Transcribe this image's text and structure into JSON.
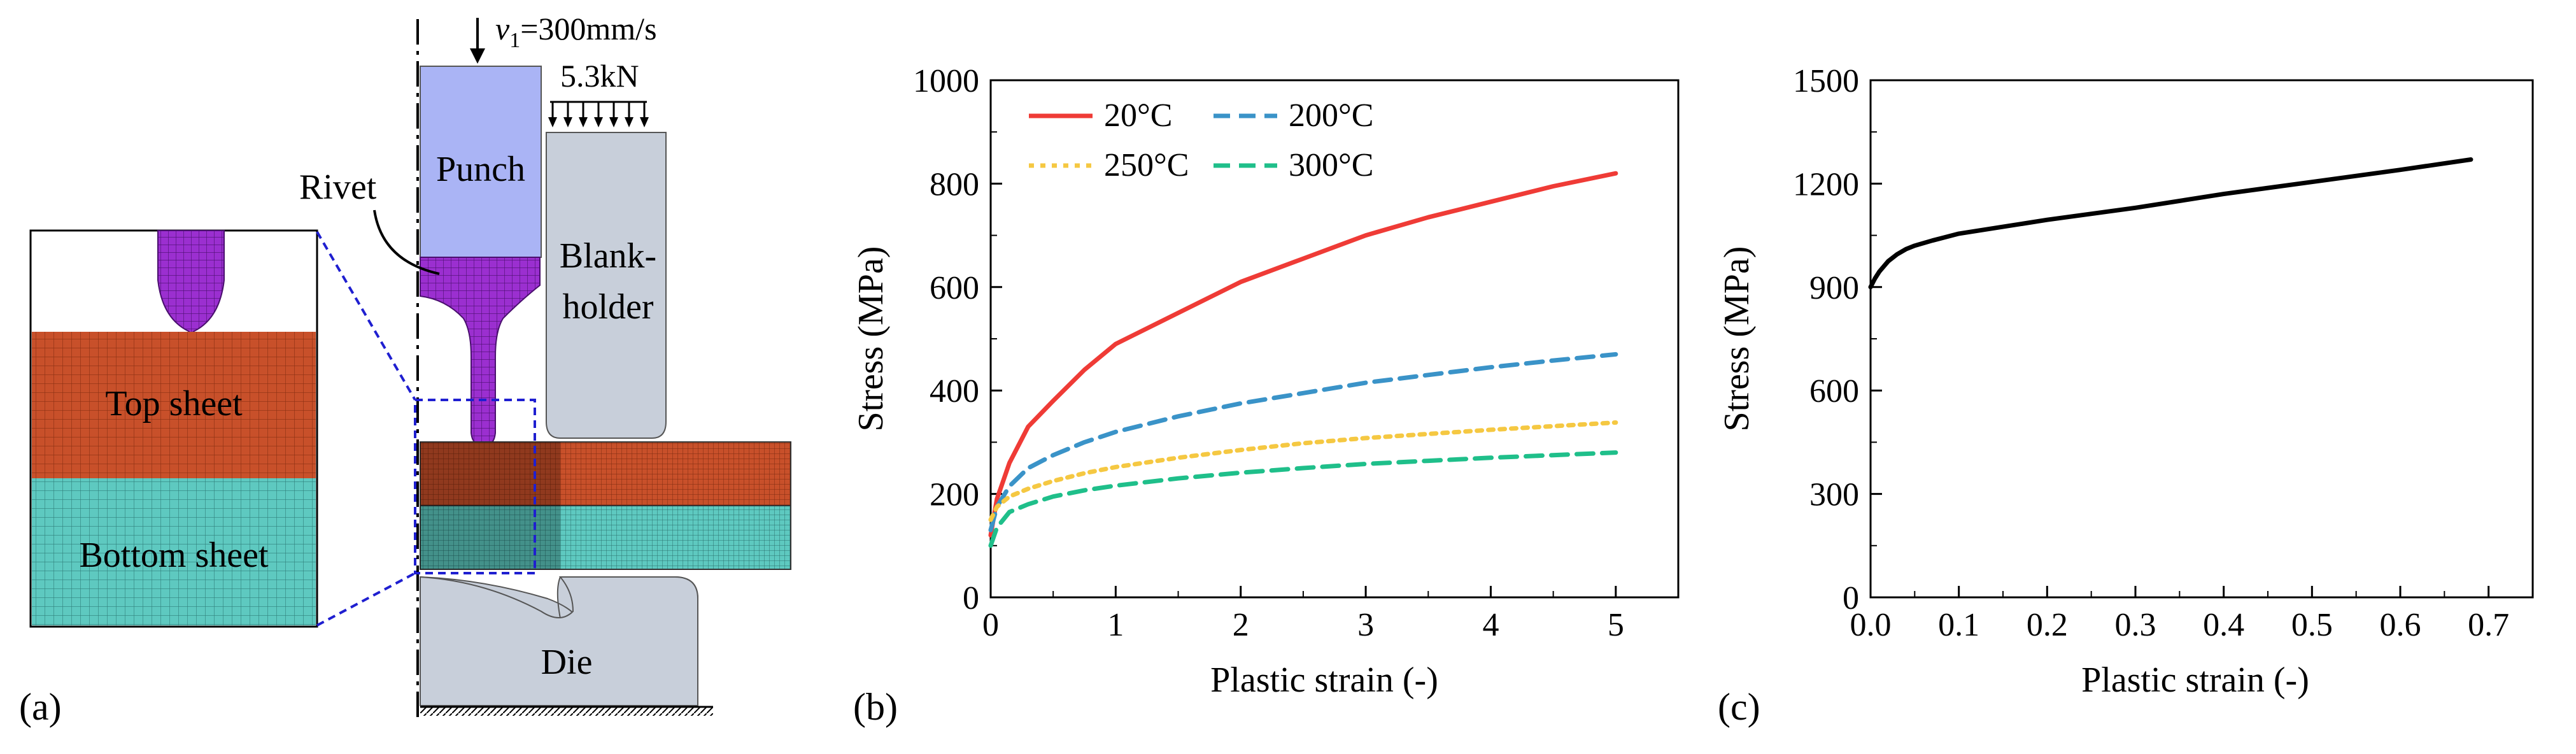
{
  "panel_a": {
    "tag": "(a)",
    "velocity_symbol": "v",
    "velocity_sub": "1",
    "velocity_value": "=300mm/s",
    "force": "5.3kN",
    "punch": "Punch",
    "blankholder_line1": "Blank-",
    "blankholder_line2": "holder",
    "rivet": "Rivet",
    "die": "Die",
    "zoom_top": "Top sheet",
    "zoom_bottom": "Bottom sheet",
    "colors": {
      "punch": "#aab4f5",
      "blankholder": "#c8cfda",
      "die": "#c8cfda",
      "rivet": "#9b2fd0",
      "top_sheet": "#c8502a",
      "bottom_sheet": "#5ec9c0",
      "zoom_frame": "#1f1fd0"
    }
  },
  "chart_data": [
    {
      "type": "line",
      "tag": "(b)",
      "xlabel": "Plastic strain (-)",
      "ylabel": "Stress (MPa)",
      "xlim": [
        0,
        5.5
      ],
      "ylim": [
        0,
        1000
      ],
      "xticks": [
        0,
        1,
        2,
        3,
        4,
        5
      ],
      "yticks": [
        0,
        200,
        400,
        600,
        800,
        1000
      ],
      "legend_position": "top-left",
      "series": [
        {
          "name": "20°C",
          "color": "#ef3b36",
          "dash": "solid",
          "x": [
            0,
            0.05,
            0.15,
            0.3,
            0.5,
            0.75,
            1,
            1.5,
            2,
            2.5,
            3,
            3.5,
            4,
            4.5,
            5
          ],
          "y": [
            120,
            190,
            260,
            330,
            380,
            440,
            490,
            550,
            610,
            655,
            700,
            735,
            765,
            795,
            820
          ]
        },
        {
          "name": "200°C",
          "color": "#3a93c8",
          "dash": "dash",
          "x": [
            0,
            0.05,
            0.15,
            0.3,
            0.5,
            0.75,
            1,
            1.5,
            2,
            2.5,
            3,
            3.5,
            4,
            4.5,
            5
          ],
          "y": [
            130,
            175,
            215,
            250,
            275,
            300,
            320,
            350,
            375,
            395,
            415,
            430,
            445,
            458,
            470
          ]
        },
        {
          "name": "250°C",
          "color": "#f5c842",
          "dash": "dot",
          "x": [
            0,
            0.05,
            0.15,
            0.3,
            0.5,
            0.75,
            1,
            1.5,
            2,
            2.5,
            3,
            3.5,
            4,
            4.5,
            5
          ],
          "y": [
            150,
            175,
            195,
            210,
            225,
            240,
            252,
            270,
            285,
            298,
            308,
            316,
            324,
            331,
            338
          ]
        },
        {
          "name": "300°C",
          "color": "#1fbf8a",
          "dash": "dash",
          "x": [
            0,
            0.05,
            0.15,
            0.3,
            0.5,
            0.75,
            1,
            1.5,
            2,
            2.5,
            3,
            3.5,
            4,
            4.5,
            5
          ],
          "y": [
            100,
            135,
            165,
            180,
            195,
            207,
            216,
            230,
            241,
            250,
            258,
            264,
            270,
            275,
            280
          ]
        }
      ]
    },
    {
      "type": "line",
      "tag": "(c)",
      "xlabel": "Plastic strain (-)",
      "ylabel": "Stress (MPa)",
      "xlim": [
        0,
        0.75
      ],
      "ylim": [
        0,
        1500
      ],
      "xticks": [
        "0.0",
        "0.1",
        "0.2",
        "0.3",
        "0.4",
        "0.5",
        "0.6",
        "0.7"
      ],
      "yticks": [
        0,
        300,
        600,
        900,
        1200,
        1500
      ],
      "series": [
        {
          "name": "",
          "color": "#000000",
          "dash": "solid",
          "x": [
            0,
            0.005,
            0.01,
            0.02,
            0.03,
            0.04,
            0.05,
            0.07,
            0.1,
            0.15,
            0.2,
            0.3,
            0.4,
            0.5,
            0.6,
            0.68
          ],
          "y": [
            900,
            925,
            945,
            975,
            995,
            1010,
            1020,
            1035,
            1055,
            1075,
            1095,
            1130,
            1170,
            1205,
            1240,
            1270
          ]
        }
      ]
    }
  ]
}
